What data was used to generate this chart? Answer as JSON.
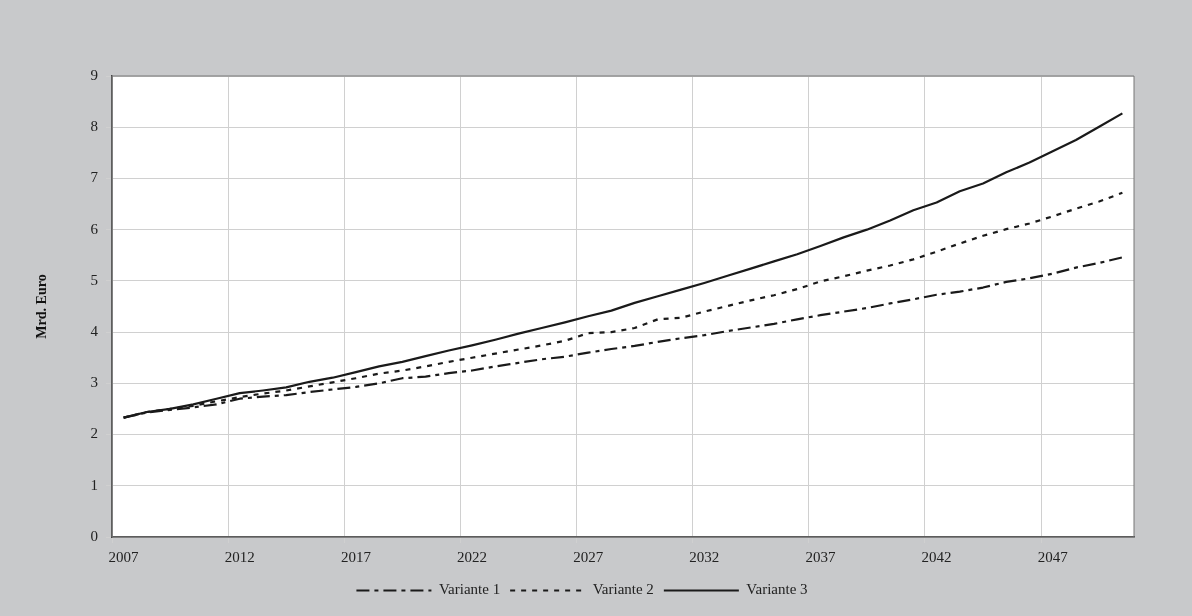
{
  "chart_data": {
    "type": "line",
    "ylabel": "Mrd. Euro",
    "categories": [
      "2007",
      null,
      null,
      null,
      null,
      "2012",
      null,
      null,
      null,
      null,
      "2017",
      null,
      null,
      null,
      null,
      "2022",
      null,
      null,
      null,
      null,
      "2027",
      null,
      null,
      null,
      null,
      "2032",
      null,
      null,
      null,
      null,
      "2037",
      null,
      null,
      null,
      null,
      "2042",
      null,
      null,
      null,
      null,
      "2047",
      null,
      null,
      null
    ],
    "series": [
      {
        "name": "Variante 1",
        "color": "#1a1a1a",
        "line_style": "dashed",
        "values": [
          2.33,
          2.43,
          2.48,
          2.53,
          2.59,
          2.7,
          2.74,
          2.77,
          2.83,
          2.88,
          2.93,
          3.0,
          3.1,
          3.13,
          3.2,
          3.25,
          3.33,
          3.4,
          3.47,
          3.52,
          3.6,
          3.67,
          3.73,
          3.81,
          3.88,
          3.94,
          4.02,
          4.09,
          4.16,
          4.25,
          4.33,
          4.4,
          4.47,
          4.56,
          4.64,
          4.73,
          4.79,
          4.87,
          4.98,
          5.05,
          5.14,
          5.26,
          5.35,
          5.46
        ]
      },
      {
        "name": "Variante 2",
        "color": "#1a1a1a",
        "line_style": "dotted",
        "values": [
          2.33,
          2.44,
          2.5,
          2.56,
          2.65,
          2.73,
          2.8,
          2.86,
          2.94,
          3.02,
          3.1,
          3.19,
          3.25,
          3.33,
          3.42,
          3.5,
          3.58,
          3.66,
          3.74,
          3.83,
          3.98,
          4.0,
          4.08,
          4.25,
          4.28,
          4.4,
          4.51,
          4.62,
          4.72,
          4.84,
          4.99,
          5.09,
          5.2,
          5.3,
          5.42,
          5.57,
          5.73,
          5.88,
          6.01,
          6.12,
          6.26,
          6.41,
          6.55,
          6.72
        ]
      },
      {
        "name": "Variante 3",
        "color": "#1a1a1a",
        "line_style": "solid",
        "values": [
          2.33,
          2.44,
          2.5,
          2.59,
          2.7,
          2.81,
          2.86,
          2.92,
          3.03,
          3.11,
          3.22,
          3.33,
          3.42,
          3.53,
          3.64,
          3.74,
          3.85,
          3.97,
          4.08,
          4.19,
          4.31,
          4.42,
          4.57,
          4.7,
          4.83,
          4.96,
          5.1,
          5.24,
          5.38,
          5.52,
          5.68,
          5.85,
          6.0,
          6.18,
          6.38,
          6.53,
          6.75,
          6.9,
          7.12,
          7.31,
          7.53,
          7.75,
          8.01,
          8.27
        ]
      }
    ],
    "ylim": [
      0,
      9
    ],
    "yticks": [
      0,
      1,
      2,
      3,
      4,
      5,
      6,
      7,
      8,
      9
    ],
    "grid": true,
    "legend": "bottom",
    "marker": "none"
  }
}
